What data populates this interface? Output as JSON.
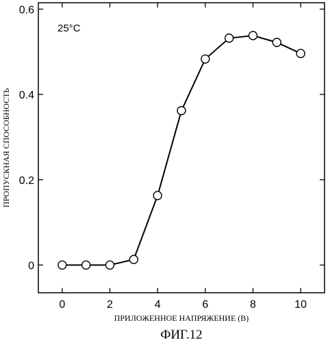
{
  "chart_data": {
    "type": "line",
    "ylabel": "ПРОПУСКНАЯ СПОСОБНОСТЬ",
    "xlabel": "ПРИЛОЖЕННОЕ НАПРЯЖЕНИЕ (В)",
    "annotation": "25°C",
    "caption": "ФИГ.12",
    "xlim": [
      -1,
      11
    ],
    "ylim": [
      -0.065,
      0.615
    ],
    "x_ticks": [
      0,
      2,
      4,
      6,
      8,
      10
    ],
    "x_tick_labels": [
      "0",
      "2",
      "4",
      "6",
      "8",
      "10"
    ],
    "y_ticks": [
      0,
      0.2,
      0.4,
      0.6
    ],
    "y_tick_labels": [
      "0",
      "0.2",
      "0.4",
      "0.6"
    ],
    "grid": false,
    "marker": "open-circle",
    "series": [
      {
        "x": [
          0,
          1,
          2,
          3,
          4,
          5,
          6,
          7,
          8,
          9,
          10
        ],
        "y": [
          0.0,
          0.0,
          0.0,
          0.013,
          0.163,
          0.362,
          0.483,
          0.532,
          0.538,
          0.522,
          0.496
        ]
      }
    ]
  }
}
